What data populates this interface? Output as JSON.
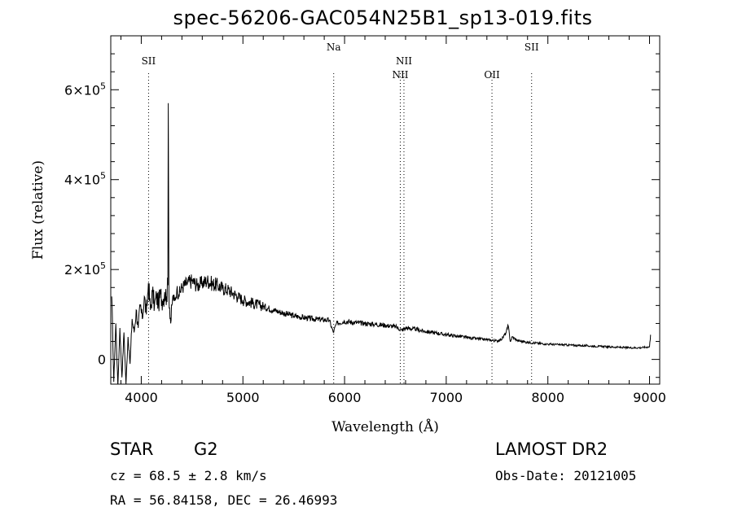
{
  "chart_data": {
    "type": "line",
    "title": "spec-56206-GAC054N25B1_sp13-019.fits",
    "xlabel": "Wavelength (Å)",
    "ylabel": "Flux (relative)",
    "xlim": [
      3700,
      9100
    ],
    "ylim": [
      -55000,
      720000
    ],
    "x_ticks": [
      4000,
      5000,
      6000,
      7000,
      8000,
      9000
    ],
    "y_ticks": [
      {
        "value": 0,
        "base": "0",
        "exp": ""
      },
      {
        "value": 200000,
        "base": "2×10",
        "exp": "5"
      },
      {
        "value": 400000,
        "base": "4×10",
        "exp": "5"
      },
      {
        "value": 600000,
        "base": "6×10",
        "exp": "5"
      }
    ],
    "grid": false,
    "series": [
      {
        "color": "#000000",
        "x": [
          3710,
          3730,
          3750,
          3770,
          3790,
          3810,
          3830,
          3850,
          3870,
          3890,
          3910,
          3930,
          3950,
          3970,
          3990,
          4010,
          4030,
          4050,
          4070,
          4090,
          4110,
          4130,
          4150,
          4170,
          4190,
          4210,
          4230,
          4250,
          4262,
          4266,
          4272,
          4290,
          4310,
          4330,
          4350,
          4370,
          4400,
          4450,
          4500,
          4550,
          4600,
          4650,
          4700,
          4750,
          4800,
          4850,
          4900,
          4950,
          5000,
          5100,
          5200,
          5300,
          5400,
          5500,
          5600,
          5700,
          5800,
          5850,
          5890,
          5920,
          6000,
          6100,
          6200,
          6300,
          6400,
          6500,
          6563,
          6600,
          6700,
          6800,
          6900,
          7000,
          7100,
          7200,
          7300,
          7400,
          7500,
          7550,
          7590,
          7610,
          7630,
          7650,
          7700,
          7800,
          7900,
          8000,
          8100,
          8200,
          8300,
          8400,
          8500,
          8600,
          8700,
          8800,
          8900,
          9000,
          9010
        ],
        "y": [
          140000,
          -50000,
          80000,
          -60000,
          70000,
          -40000,
          60000,
          -55000,
          50000,
          -10000,
          90000,
          60000,
          110000,
          70000,
          120000,
          90000,
          140000,
          100000,
          170000,
          110000,
          150000,
          120000,
          140000,
          125000,
          145000,
          130000,
          150000,
          140000,
          165000,
          570000,
          150000,
          80000,
          140000,
          130000,
          155000,
          145000,
          160000,
          170000,
          175000,
          165000,
          170000,
          175000,
          168000,
          165000,
          158000,
          155000,
          148000,
          140000,
          132000,
          125000,
          118000,
          110000,
          103000,
          97000,
          93000,
          90000,
          88000,
          87000,
          60000,
          80000,
          85000,
          82000,
          80000,
          78000,
          76000,
          73000,
          65000,
          70000,
          67000,
          62000,
          59000,
          55000,
          52000,
          49000,
          46000,
          44000,
          41000,
          46000,
          60000,
          75000,
          40000,
          50000,
          42000,
          38000,
          36000,
          34000,
          33000,
          32000,
          31000,
          30000,
          29000,
          28000,
          27000,
          26000,
          26000,
          28000,
          55000
        ]
      }
    ],
    "line_markers": [
      {
        "label": "SII",
        "x": 4072,
        "label_level": "high"
      },
      {
        "label": "Na",
        "x": 5893,
        "label_level": "top"
      },
      {
        "label": "NII",
        "x": 6548,
        "label_level": "low"
      },
      {
        "label": "NII",
        "x": 6584,
        "label_level": "high"
      },
      {
        "label": "OII",
        "x": 7450,
        "label_level": "low"
      },
      {
        "label": "SII",
        "x": 7840,
        "label_level": "top"
      }
    ]
  },
  "info": {
    "class": "STAR",
    "subclass": "G2",
    "survey": "LAMOST DR2",
    "redshift_line": "cz =  68.5 ± 2.8 km/s",
    "obs_date_line": "Obs-Date: 20121005",
    "coords_line": "RA =  56.84158, DEC =  26.46993"
  }
}
